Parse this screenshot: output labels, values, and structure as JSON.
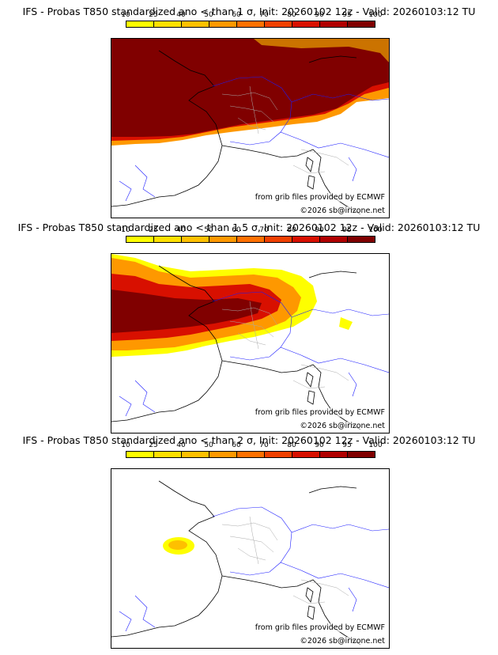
{
  "colorbar": {
    "ticks": [
      "10",
      "25",
      "40",
      "50",
      "60",
      "70",
      "80",
      "90",
      "95",
      "100"
    ],
    "colors": [
      "#fefe00",
      "#fee000",
      "#fec000",
      "#fe9800",
      "#fe7000",
      "#f04000",
      "#d81000",
      "#b00000",
      "#800000"
    ]
  },
  "panels": [
    {
      "title": "IFS - Probas T850  standardized ano < than 1 σ, Init: 20260102 12z - Valid: 20260103:12 TU",
      "credit_line1": "from grib files provided by ECMWF",
      "credit_line2": "©2026 sb@irizone.net",
      "field_extent": "large"
    },
    {
      "title": "IFS - Probas T850  standardized ano < than 1.5 σ, Init: 20260102 12z - Valid: 20260103:12 TU",
      "credit_line1": "from grib files provided by ECMWF",
      "credit_line2": "©2026 sb@irizone.net",
      "field_extent": "medium"
    },
    {
      "title": "IFS - Probas T850  standardized ano < than 2 σ, Init: 20260102 12z - Valid: 20260103:12 TU",
      "credit_line1": "from grib files provided by ECMWF",
      "credit_line2": "©2026 sb@irizone.net",
      "field_extent": "small"
    }
  ]
}
